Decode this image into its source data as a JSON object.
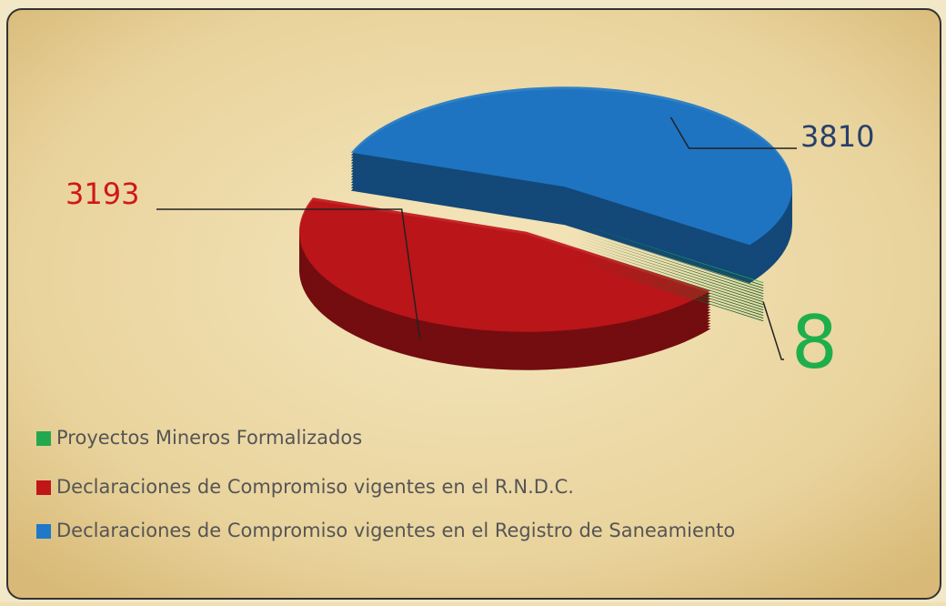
{
  "chart_data": {
    "type": "pie",
    "categories": [
      "Proyectos Mineros Formalizados",
      "Declaraciones de Compromiso vigentes en el R.N.D.C.",
      "Declaraciones de Compromiso vigentes en el Registro de Saneamiento"
    ],
    "values": [
      8,
      3193,
      3810
    ],
    "colors": [
      "#22a94f",
      "#c0161a",
      "#1f78c8"
    ],
    "legend": "bottom-left"
  }
}
